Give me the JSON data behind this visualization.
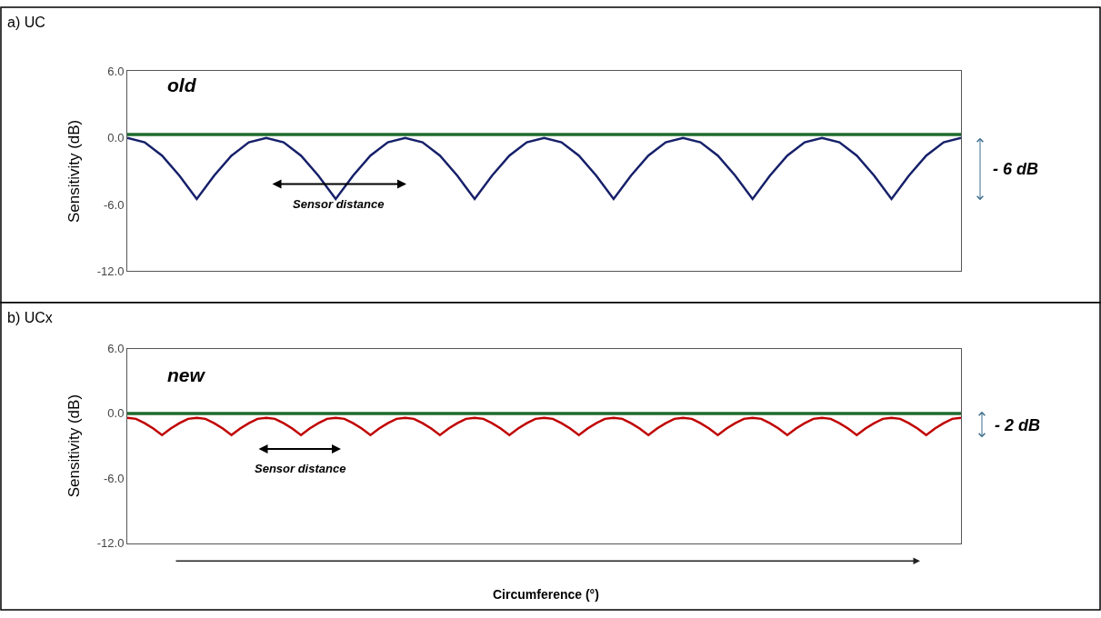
{
  "chart_data": [
    {
      "type": "line",
      "title": "a) UC",
      "ylabel": "Sensitivity (dB)",
      "categories": [
        null,
        null,
        null,
        null,
        null,
        null,
        null,
        null,
        null,
        null,
        null,
        null,
        null,
        null,
        null,
        null,
        null,
        null,
        null,
        null,
        null,
        null,
        null,
        null,
        null,
        null,
        null,
        null,
        null,
        null,
        null,
        null,
        null,
        null,
        null,
        null,
        null,
        null,
        null,
        null,
        null,
        null,
        null,
        null,
        null,
        null,
        null,
        null,
        null
      ],
      "series": [
        {
          "color": "#16206a",
          "values": [
            0,
            -0.4,
            -1.6,
            -3.4,
            -5.5,
            -3.4,
            -1.6,
            -0.4,
            0,
            -0.4,
            -1.6,
            -3.4,
            -5.5,
            -3.4,
            -1.6,
            -0.4,
            0,
            -0.4,
            -1.6,
            -3.4,
            -5.5,
            -3.4,
            -1.6,
            -0.4,
            0,
            -0.4,
            -1.6,
            -3.4,
            -5.5,
            -3.4,
            -1.6,
            -0.4,
            0,
            -0.4,
            -1.6,
            -3.4,
            -5.5,
            -3.4,
            -1.6,
            -0.4,
            0,
            -0.4,
            -1.6,
            -3.4,
            -5.5,
            -3.4,
            -1.6,
            -0.4,
            0
          ]
        }
      ],
      "ylim": [
        -12,
        6
      ],
      "yticks": [
        {
          "value": 6,
          "label": "6.0"
        },
        {
          "value": 0,
          "label": "0.0"
        },
        {
          "value": -6,
          "label": "-6.0"
        },
        {
          "value": -12,
          "label": "-12.0"
        }
      ],
      "ref_lines": [
        {
          "axis": "y",
          "value": 0.3,
          "color": "#1e6b2e"
        }
      ],
      "annotations": [
        "old",
        "Sensor distance",
        "- 6 dB"
      ],
      "tick_labels": "y"
    },
    {
      "type": "line",
      "title": "b) UCx",
      "ylabel": "Sensitivity (dB)",
      "xlabel": "Circumference (°)",
      "categories": [
        null,
        null,
        null,
        null,
        null,
        null,
        null,
        null,
        null,
        null,
        null,
        null,
        null,
        null,
        null,
        null,
        null,
        null,
        null,
        null,
        null,
        null,
        null,
        null,
        null,
        null,
        null,
        null,
        null,
        null,
        null,
        null,
        null,
        null,
        null,
        null,
        null,
        null,
        null,
        null,
        null,
        null,
        null,
        null,
        null,
        null,
        null,
        null,
        null,
        null,
        null,
        null,
        null,
        null,
        null,
        null,
        null,
        null,
        null,
        null,
        null,
        null,
        null,
        null,
        null,
        null,
        null,
        null,
        null,
        null,
        null,
        null,
        null,
        null,
        null,
        null,
        null,
        null,
        null,
        null,
        null,
        null,
        null,
        null,
        null,
        null,
        null,
        null,
        null,
        null,
        null,
        null,
        null,
        null,
        null,
        null,
        null
      ],
      "series": [
        {
          "color": "#c00000",
          "values": [
            -0.4,
            -0.5,
            -0.9,
            -1.4,
            -2.0,
            -1.4,
            -0.9,
            -0.5,
            -0.4,
            -0.5,
            -0.9,
            -1.4,
            -2.0,
            -1.4,
            -0.9,
            -0.5,
            -0.4,
            -0.5,
            -0.9,
            -1.4,
            -2.0,
            -1.4,
            -0.9,
            -0.5,
            -0.4,
            -0.5,
            -0.9,
            -1.4,
            -2.0,
            -1.4,
            -0.9,
            -0.5,
            -0.4,
            -0.5,
            -0.9,
            -1.4,
            -2.0,
            -1.4,
            -0.9,
            -0.5,
            -0.4,
            -0.5,
            -0.9,
            -1.4,
            -2.0,
            -1.4,
            -0.9,
            -0.5,
            -0.4,
            -0.5,
            -0.9,
            -1.4,
            -2.0,
            -1.4,
            -0.9,
            -0.5,
            -0.4,
            -0.5,
            -0.9,
            -1.4,
            -2.0,
            -1.4,
            -0.9,
            -0.5,
            -0.4,
            -0.5,
            -0.9,
            -1.4,
            -2.0,
            -1.4,
            -0.9,
            -0.5,
            -0.4,
            -0.5,
            -0.9,
            -1.4,
            -2.0,
            -1.4,
            -0.9,
            -0.5,
            -0.4,
            -0.5,
            -0.9,
            -1.4,
            -2.0,
            -1.4,
            -0.9,
            -0.5,
            -0.4,
            -0.5,
            -0.9,
            -1.4,
            -2.0,
            -1.4,
            -0.9,
            -0.5,
            -0.4
          ]
        }
      ],
      "ylim": [
        -12,
        6
      ],
      "yticks": [
        {
          "value": 6,
          "label": "6.0"
        },
        {
          "value": 0,
          "label": "0.0"
        },
        {
          "value": -6,
          "label": "-6.0"
        },
        {
          "value": -12,
          "label": "-12.0"
        }
      ],
      "ref_lines": [
        {
          "axis": "y",
          "value": 0.0,
          "color": "#1e6b2e"
        }
      ],
      "annotations": [
        "new",
        "Sensor distance",
        "- 2 dB"
      ],
      "tick_labels": "y"
    }
  ]
}
